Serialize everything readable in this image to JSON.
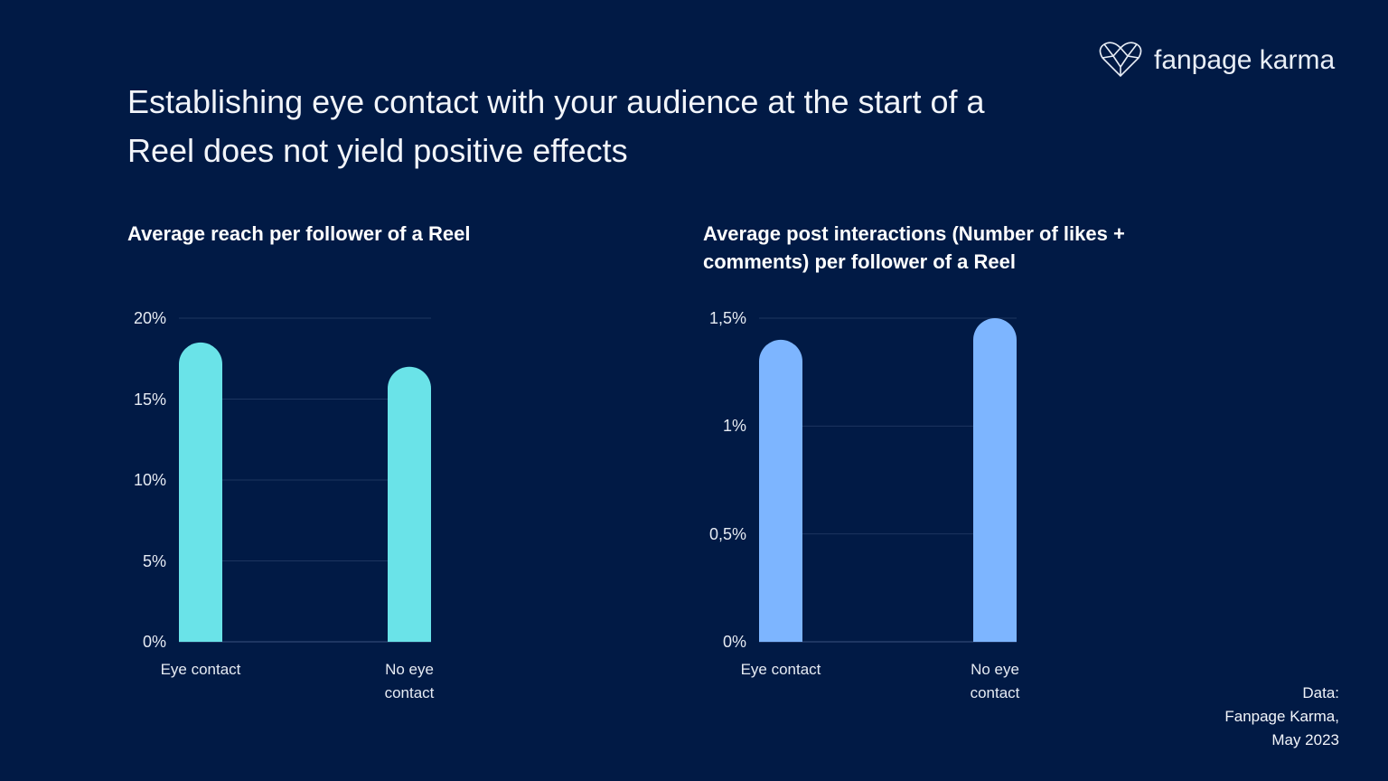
{
  "title": "Establishing eye contact with your audience at the start of a Reel does not yield positive effects",
  "brand": "fanpage karma",
  "source": [
    "Data:",
    "Fanpage Karma,",
    "May 2023"
  ],
  "chart_data": [
    {
      "type": "bar",
      "title": "Average reach per follower of a Reel",
      "categories": [
        "Eye contact",
        "No eye contact"
      ],
      "values": [
        18.5,
        17.0
      ],
      "color": "#6ae3e8",
      "ylim": [
        0,
        20
      ],
      "yticks": [
        {
          "value": 0,
          "label": "0%"
        },
        {
          "value": 5,
          "label": "5%"
        },
        {
          "value": 10,
          "label": "10%"
        },
        {
          "value": 15,
          "label": "15%"
        },
        {
          "value": 20,
          "label": "20%"
        }
      ],
      "grid": true
    },
    {
      "type": "bar",
      "title": "Average post interactions (Number of likes + comments) per follower of a Reel",
      "categories": [
        "Eye contact",
        "No eye contact"
      ],
      "values": [
        1.4,
        1.5
      ],
      "color": "#7db5ff",
      "ylim": [
        0,
        1.5
      ],
      "yticks": [
        {
          "value": 0,
          "label": "0%"
        },
        {
          "value": 0.5,
          "label": "0,5%"
        },
        {
          "value": 1,
          "label": "1%"
        },
        {
          "value": 1.5,
          "label": "1,5%"
        }
      ],
      "grid": true
    }
  ]
}
